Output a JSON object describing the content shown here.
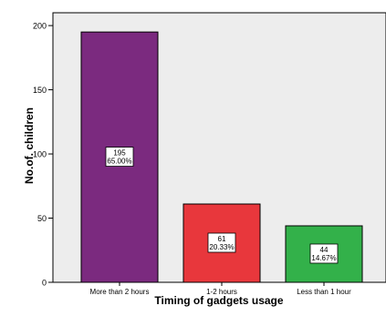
{
  "chart_data": {
    "type": "bar",
    "title": "",
    "xlabel": "Timing of gadgets usage",
    "ylabel": "No.of. children",
    "categories": [
      "More than 2 hours",
      "1-2 hours",
      "Less than 1 hour"
    ],
    "values": [
      195,
      61,
      44
    ],
    "percent_labels": [
      "65.00%",
      "20.33%",
      "14.67%"
    ],
    "bar_colors": [
      "#7b2a7f",
      "#e8373c",
      "#33b14a"
    ],
    "ylim": [
      0,
      210
    ],
    "yticks": [
      0,
      50,
      100,
      150,
      200
    ],
    "grid": false,
    "legend": "none",
    "plot_background": "#ededed"
  }
}
